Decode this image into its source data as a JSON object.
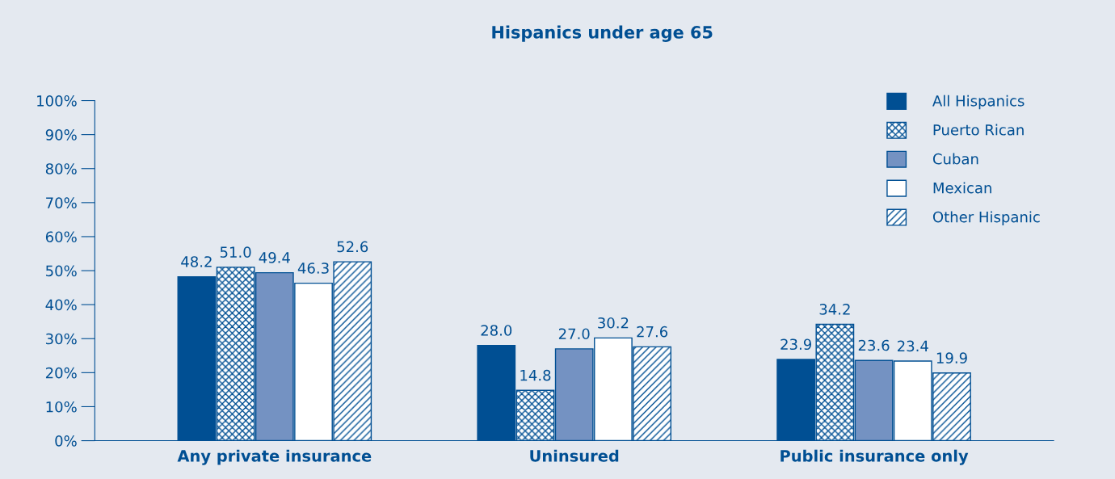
{
  "chart_data": {
    "type": "bar",
    "title": "Hispanics under age 65",
    "categories": [
      "Any private insurance",
      "Uninsured",
      "Public insurance only"
    ],
    "series": [
      {
        "name": "All Hispanics",
        "color": "#004f93",
        "values": [
          48.2,
          28.0,
          23.9
        ],
        "value_labels": [
          "48.2",
          "28.0",
          "23.9"
        ]
      },
      {
        "name": "Puerto Rican",
        "color": "#004f93",
        "values": [
          51.0,
          14.8,
          34.2
        ],
        "value_labels": [
          "51.0",
          "14.8",
          "34.2"
        ]
      },
      {
        "name": "Cuban",
        "color": "#7492c2",
        "values": [
          49.4,
          27.0,
          23.6
        ],
        "value_labels": [
          "49.4",
          "27.0",
          "23.6"
        ]
      },
      {
        "name": "Mexican",
        "color": "#ffffff",
        "values": [
          46.3,
          30.2,
          23.4
        ],
        "value_labels": [
          "46.3",
          "30.2",
          "23.4"
        ]
      },
      {
        "name": "Other Hispanic",
        "color": "#004f93",
        "values": [
          52.6,
          27.6,
          19.9
        ],
        "value_labels": [
          "52.6",
          "27.6",
          "19.9"
        ]
      }
    ],
    "ylim": [
      0,
      100
    ],
    "yticks": [
      {
        "value": 0,
        "label": "0%"
      },
      {
        "value": 10,
        "label": "10%"
      },
      {
        "value": 20,
        "label": "20%"
      },
      {
        "value": 30,
        "label": "30%"
      },
      {
        "value": 40,
        "label": "40%"
      },
      {
        "value": 50,
        "label": "50%"
      },
      {
        "value": 60,
        "label": "60%"
      },
      {
        "value": 70,
        "label": "70%"
      },
      {
        "value": 80,
        "label": "80%"
      },
      {
        "value": 90,
        "label": "90%"
      },
      {
        "value": 100,
        "label": "100%"
      }
    ],
    "grid": false,
    "legend": "top right"
  }
}
